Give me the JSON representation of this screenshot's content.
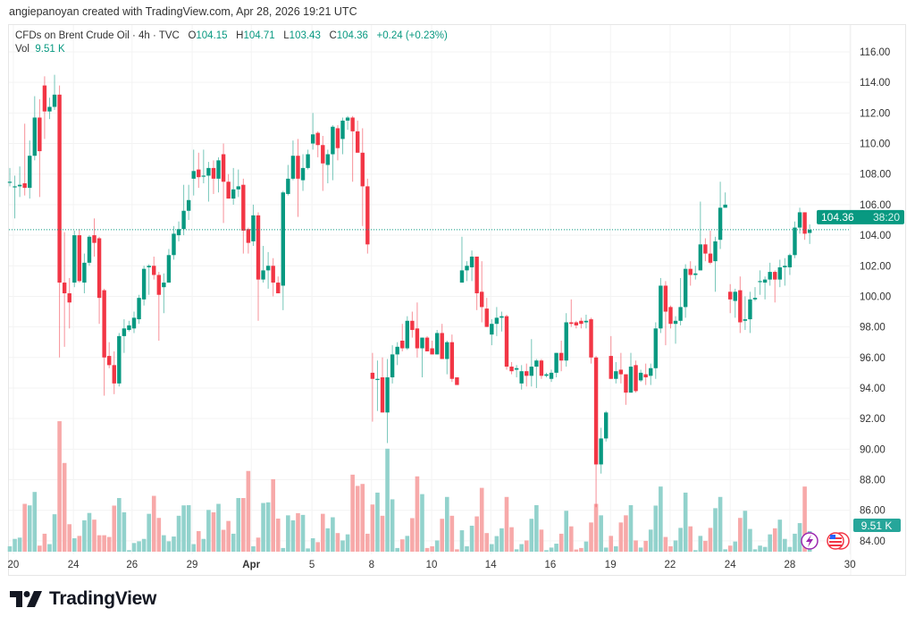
{
  "attribution": "angiepanoyan created with TradingView.com, Apr 28, 2026 19:21 UTC",
  "legend": {
    "symbol": "CFDs on Brent Crude Oil · 4h · TVC",
    "open_label": "O",
    "open": "104.15",
    "high_label": "H",
    "high": "104.71",
    "low_label": "L",
    "low": "103.43",
    "close_label": "C",
    "close": "104.36",
    "change": "+0.24 (+0.23%)",
    "vol_label": "Vol",
    "vol": "9.51 K"
  },
  "price_tag": {
    "price": "104.36",
    "countdown": "38:20"
  },
  "volume_tag": "9.51 K",
  "footer": {
    "brand": "TradingView"
  },
  "colors": {
    "up": "#089981",
    "down": "#f23645",
    "up_volume": "#92d2cc",
    "down_volume": "#f7a9a9"
  },
  "chart_data": {
    "type": "candlestick",
    "title": "CFDs on Brent Crude Oil · 4h · TVC",
    "y_ticks": [
      "116.00",
      "114.00",
      "112.00",
      "110.00",
      "108.00",
      "106.00",
      "104.00",
      "102.00",
      "100.00",
      "98.00",
      "96.00",
      "94.00",
      "92.00",
      "90.00",
      "88.00",
      "86.00",
      "84.00"
    ],
    "ylim": [
      84,
      116
    ],
    "last_price": 104.36,
    "x_ticks": [
      {
        "label": "20",
        "bar": 0.7
      },
      {
        "label": "24",
        "bar": 12.8
      },
      {
        "label": "26",
        "bar": 24.6
      },
      {
        "label": "29",
        "bar": 36.7
      },
      {
        "label": "Apr",
        "bar": 48.6,
        "bold": true
      },
      {
        "label": "5",
        "bar": 60.8
      },
      {
        "label": "8",
        "bar": 72.8
      },
      {
        "label": "10",
        "bar": 84.9
      },
      {
        "label": "14",
        "bar": 96.8
      },
      {
        "label": "16",
        "bar": 108.8
      },
      {
        "label": "19",
        "bar": 120.9
      },
      {
        "label": "22",
        "bar": 132.9
      },
      {
        "label": "24",
        "bar": 145.0
      },
      {
        "label": "28",
        "bar": 157.0
      },
      {
        "label": "30",
        "bar": 169.1
      }
    ],
    "ohlc": [
      [
        107.5,
        108.4,
        107.2,
        107.5
      ],
      [
        107.2,
        107.9,
        105.1,
        107.2
      ],
      [
        107.2,
        108.5,
        106.5,
        107.3
      ],
      [
        107.4,
        111.3,
        106.6,
        107.1
      ],
      [
        107.1,
        110.2,
        106.4,
        109.2
      ],
      [
        109.2,
        113.1,
        108.9,
        111.7
      ],
      [
        111.7,
        112.9,
        106.5,
        109.5
      ],
      [
        113.8,
        114.4,
        110.3,
        112.1
      ],
      [
        112.1,
        113.0,
        111.6,
        112.4
      ],
      [
        112.4,
        114.5,
        112.2,
        113.2
      ],
      [
        113.2,
        113.8,
        96.0,
        100.9
      ],
      [
        100.9,
        104.2,
        96.7,
        100.2
      ],
      [
        100.2,
        101.2,
        97.9,
        99.6
      ],
      [
        100.9,
        104.3,
        100.6,
        104.0
      ],
      [
        104.0,
        104.4,
        100.9,
        101.0
      ],
      [
        100.9,
        102.8,
        100.2,
        102.2
      ],
      [
        102.2,
        104.0,
        102.0,
        103.9
      ],
      [
        104.0,
        105.1,
        102.6,
        103.5
      ],
      [
        103.8,
        103.9,
        98.2,
        99.9
      ],
      [
        100.4,
        100.5,
        93.5,
        96.0
      ],
      [
        96.1,
        97.0,
        95.3,
        95.5
      ],
      [
        95.5,
        96.4,
        93.6,
        94.3
      ],
      [
        94.3,
        97.6,
        94.1,
        97.4
      ],
      [
        97.4,
        98.5,
        96.3,
        97.9
      ],
      [
        97.8,
        98.4,
        97.7,
        98.1
      ],
      [
        97.9,
        99.0,
        97.6,
        98.6
      ],
      [
        98.5,
        100.1,
        98.2,
        99.9
      ],
      [
        99.8,
        102.0,
        99.4,
        101.8
      ],
      [
        101.9,
        102.1,
        100.1,
        102.0
      ],
      [
        102.0,
        102.6,
        101.1,
        101.4
      ],
      [
        101.4,
        101.6,
        97.1,
        100.1
      ],
      [
        100.6,
        101.5,
        98.9,
        100.9
      ],
      [
        100.9,
        103.1,
        100.9,
        102.7
      ],
      [
        102.7,
        104.6,
        102.4,
        104.1
      ],
      [
        104.0,
        104.9,
        103.6,
        104.4
      ],
      [
        104.4,
        107.3,
        104.0,
        105.6
      ],
      [
        105.6,
        107.3,
        105.0,
        106.3
      ],
      [
        107.7,
        109.6,
        106.6,
        108.2
      ],
      [
        108.3,
        109.4,
        107.1,
        107.8
      ],
      [
        107.9,
        109.6,
        107.4,
        107.9
      ],
      [
        107.9,
        108.8,
        106.2,
        108.4
      ],
      [
        108.4,
        108.9,
        106.7,
        107.7
      ],
      [
        107.7,
        109.1,
        106.8,
        108.9
      ],
      [
        109.3,
        110.0,
        104.8,
        107.5
      ],
      [
        107.5,
        108.0,
        106.4,
        106.4
      ],
      [
        106.4,
        108.4,
        106.0,
        107.0
      ],
      [
        107.0,
        108.3,
        106.5,
        107.2
      ],
      [
        107.3,
        107.7,
        102.8,
        104.3
      ],
      [
        104.4,
        104.5,
        102.8,
        103.5
      ],
      [
        103.6,
        106.0,
        103.3,
        105.3
      ],
      [
        105.3,
        105.5,
        98.4,
        101.1
      ],
      [
        101.1,
        103.3,
        100.9,
        101.7
      ],
      [
        101.7,
        102.9,
        100.5,
        102.0
      ],
      [
        102.0,
        102.5,
        100.0,
        100.9
      ],
      [
        100.9,
        101.3,
        100.2,
        100.2
      ],
      [
        100.7,
        106.9,
        99.1,
        106.8
      ],
      [
        106.7,
        108.6,
        106.6,
        107.7
      ],
      [
        107.7,
        110.2,
        107.6,
        109.2
      ],
      [
        109.2,
        110.3,
        105.2,
        107.7
      ],
      [
        107.6,
        109.3,
        106.9,
        108.4
      ],
      [
        108.4,
        109.6,
        108.3,
        109.3
      ],
      [
        110.0,
        112.0,
        109.6,
        110.6
      ],
      [
        110.7,
        110.8,
        109.1,
        109.9
      ],
      [
        109.9,
        110.5,
        106.9,
        108.7
      ],
      [
        108.6,
        109.6,
        107.4,
        109.3
      ],
      [
        109.3,
        111.2,
        107.6,
        111.1
      ],
      [
        111.0,
        111.2,
        108.9,
        109.7
      ],
      [
        110.3,
        111.7,
        109.3,
        111.5
      ],
      [
        111.5,
        111.8,
        110.9,
        111.7
      ],
      [
        111.7,
        111.8,
        107.5,
        110.8
      ],
      [
        110.8,
        111.5,
        109.4,
        109.4
      ],
      [
        109.4,
        111.0,
        104.6,
        107.2
      ],
      [
        107.2,
        107.7,
        102.8,
        103.4
      ],
      [
        95.0,
        96.3,
        91.8,
        94.6
      ],
      [
        94.6,
        95.8,
        92.5,
        94.6
      ],
      [
        94.7,
        96.0,
        92.4,
        92.4
      ],
      [
        92.4,
        95.9,
        90.4,
        94.7
      ],
      [
        94.7,
        96.8,
        94.3,
        96.2
      ],
      [
        96.2,
        97.0,
        95.5,
        96.7
      ],
      [
        97.1,
        98.2,
        96.4,
        96.6
      ],
      [
        96.6,
        98.7,
        96.5,
        98.4
      ],
      [
        98.4,
        99.0,
        97.3,
        97.8
      ],
      [
        97.9,
        99.6,
        96.0,
        96.6
      ],
      [
        96.6,
        97.3,
        94.7,
        97.3
      ],
      [
        97.3,
        97.4,
        96.4,
        96.4
      ],
      [
        96.6,
        97.1,
        96.2,
        96.2
      ],
      [
        96.2,
        97.8,
        96.2,
        97.6
      ],
      [
        97.6,
        98.2,
        95.9,
        95.9
      ],
      [
        95.9,
        97.1,
        94.9,
        97.0
      ],
      [
        97.0,
        97.5,
        94.4,
        94.6
      ],
      [
        94.7,
        94.7,
        94.2,
        94.2
      ],
      [
        100.9,
        103.9,
        100.9,
        101.7
      ],
      [
        101.7,
        102.3,
        101.0,
        102.0
      ],
      [
        101.9,
        103.0,
        101.0,
        102.6
      ],
      [
        102.6,
        102.6,
        99.1,
        100.2
      ],
      [
        100.3,
        102.3,
        98.3,
        99.3
      ],
      [
        99.2,
        99.9,
        98.0,
        98.0
      ],
      [
        97.5,
        98.5,
        96.8,
        98.2
      ],
      [
        98.2,
        99.3,
        97.4,
        98.6
      ],
      [
        98.6,
        99.0,
        97.7,
        98.7
      ],
      [
        98.7,
        98.8,
        95.2,
        95.4
      ],
      [
        95.4,
        95.7,
        94.9,
        95.1
      ],
      [
        95.2,
        95.5,
        94.7,
        95.3
      ],
      [
        94.3,
        95.5,
        93.9,
        95.1
      ],
      [
        95.1,
        95.6,
        94.1,
        94.8
      ],
      [
        94.8,
        97.2,
        94.1,
        95.4
      ],
      [
        95.4,
        95.9,
        94.0,
        95.8
      ],
      [
        95.8,
        95.9,
        94.6,
        94.8
      ],
      [
        94.8,
        95.0,
        94.7,
        94.9
      ],
      [
        94.6,
        95.2,
        94.4,
        95.0
      ],
      [
        95.0,
        96.3,
        94.7,
        96.3
      ],
      [
        96.3,
        97.1,
        95.1,
        95.8
      ],
      [
        95.8,
        98.9,
        95.4,
        98.3
      ],
      [
        98.3,
        99.8,
        98.0,
        98.2
      ],
      [
        98.3,
        98.4,
        97.9,
        98.1
      ],
      [
        98.4,
        98.6,
        97.9,
        98.2
      ],
      [
        98.3,
        98.8,
        97.9,
        98.4
      ],
      [
        98.5,
        98.6,
        95.6,
        96.0
      ],
      [
        96.0,
        96.1,
        86.2,
        89.0
      ],
      [
        89.0,
        91.4,
        88.4,
        90.7
      ],
      [
        90.7,
        92.5,
        90.5,
        92.4
      ],
      [
        96.1,
        97.4,
        94.6,
        94.6
      ],
      [
        94.6,
        95.7,
        94.3,
        95.1
      ],
      [
        95.2,
        96.3,
        94.3,
        94.9
      ],
      [
        94.9,
        94.9,
        92.9,
        93.7
      ],
      [
        93.7,
        96.3,
        93.7,
        95.4
      ],
      [
        95.5,
        95.8,
        93.7,
        93.8
      ],
      [
        94.5,
        95.2,
        94.4,
        95.0
      ],
      [
        94.9,
        95.6,
        94.2,
        94.7
      ],
      [
        94.8,
        95.6,
        94.2,
        95.3
      ],
      [
        95.3,
        98.3,
        94.6,
        97.9
      ],
      [
        97.9,
        101.2,
        97.6,
        100.7
      ],
      [
        100.7,
        101.0,
        96.8,
        99.0
      ],
      [
        99.3,
        99.4,
        97.9,
        98.2
      ],
      [
        98.2,
        98.7,
        96.9,
        98.4
      ],
      [
        98.4,
        101.2,
        98.1,
        99.3
      ],
      [
        99.3,
        102.1,
        98.6,
        101.8
      ],
      [
        101.8,
        102.3,
        100.7,
        101.4
      ],
      [
        101.4,
        102.0,
        101.1,
        101.5
      ],
      [
        101.7,
        106.2,
        101.7,
        103.4
      ],
      [
        103.4,
        103.8,
        102.3,
        102.8
      ],
      [
        102.8,
        104.3,
        102.1,
        102.2
      ],
      [
        102.3,
        103.9,
        100.3,
        103.6
      ],
      [
        103.7,
        107.5,
        103.1,
        105.8
      ],
      [
        105.8,
        106.8,
        105.8,
        106.0
      ],
      [
        100.3,
        100.8,
        98.9,
        99.8
      ],
      [
        99.7,
        100.5,
        98.6,
        100.3
      ],
      [
        100.4,
        101.3,
        97.6,
        98.3
      ],
      [
        98.4,
        100.0,
        97.8,
        98.5
      ],
      [
        98.5,
        100.3,
        97.6,
        99.8
      ],
      [
        99.8,
        100.6,
        99.7,
        99.9
      ],
      [
        101.0,
        101.7,
        100.1,
        101.0
      ],
      [
        100.9,
        101.3,
        99.8,
        101.1
      ],
      [
        101.1,
        102.2,
        100.7,
        101.6
      ],
      [
        101.6,
        101.7,
        99.6,
        101.1
      ],
      [
        101.1,
        102.4,
        100.6,
        101.9
      ],
      [
        101.9,
        102.5,
        100.7,
        102.0
      ],
      [
        101.9,
        102.8,
        101.4,
        102.7
      ],
      [
        102.7,
        104.9,
        102.5,
        104.5
      ],
      [
        104.5,
        105.8,
        104.1,
        105.5
      ],
      [
        105.5,
        105.5,
        103.7,
        104.1
      ],
      [
        104.15,
        104.71,
        103.43,
        104.36
      ]
    ],
    "volume_k": [
      2.5,
      5.9,
      6.5,
      22.1,
      21.4,
      27.6,
      2.8,
      8.3,
      3.5,
      17.3,
      60.3,
      41.0,
      12.7,
      6.2,
      7.3,
      14.5,
      17.9,
      14.8,
      7.6,
      7.6,
      6.8,
      21.3,
      24.8,
      18.2,
      0.7,
      4.0,
      4.8,
      5.9,
      17.5,
      25.8,
      15.6,
      7.6,
      4.8,
      7.0,
      16.6,
      21.4,
      21.5,
      3.5,
      9.5,
      5.9,
      19.3,
      18.2,
      22.1,
      10.1,
      14.2,
      8.3,
      24.8,
      24.8,
      37.3,
      2.5,
      6.5,
      22.5,
      22.8,
      33.5,
      15.3,
      1.7,
      16.8,
      14.5,
      17.8,
      17.0,
      1.5,
      6.2,
      4.4,
      17.5,
      10.8,
      15.9,
      8.6,
      5.2,
      8.0,
      35.6,
      30.4,
      31.3,
      8.3,
      21.8,
      27.3,
      16.6,
      47.6,
      24.2,
      1.7,
      5.7,
      7.3,
      15.5,
      34.8,
      26.6,
      1.7,
      2.5,
      5.2,
      15.2,
      25.3,
      16.6,
      1.1,
      9.9,
      2.5,
      12.0,
      16.3,
      29.5,
      8.6,
      3.5,
      7.2,
      10.8,
      25.3,
      11.3,
      1.1,
      3.5,
      5.2,
      15.2,
      21.5,
      10.2,
      0.7,
      1.9,
      3.7,
      8.3,
      18.9,
      11.7,
      1.0,
      1.7,
      4.7,
      13.5,
      22.1,
      16.8,
      1.9,
      7.3,
      2.5,
      13.5,
      16.8,
      21.5,
      5.2,
      1.9,
      5.0,
      10.2,
      21.3,
      30.1,
      6.8,
      2.5,
      5.2,
      11.0,
      27.3,
      11.7,
      0.7,
      7.3,
      5.0,
      11.0,
      20.1,
      25.3,
      1.1,
      2.8,
      4.7,
      15.6,
      18.9,
      10.5,
      1.1,
      2.8,
      2.2,
      8.0,
      10.8,
      14.8,
      5.9,
      2.2,
      8.3,
      13.2,
      30.1,
      9.51
    ]
  }
}
